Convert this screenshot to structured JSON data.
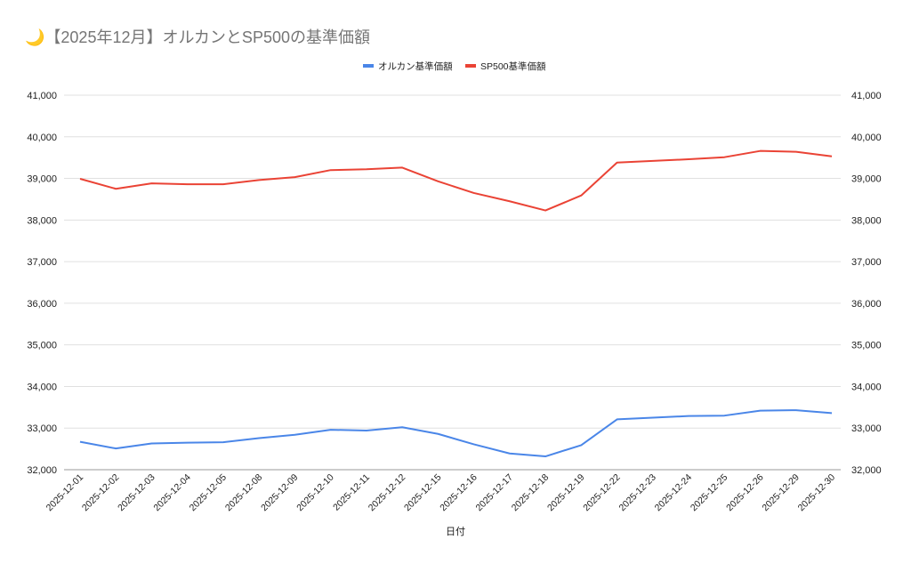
{
  "chart_data": {
    "type": "line",
    "title": "🌙【2025年12月】オルカンとSP500の基準価額",
    "xlabel": "日付",
    "ylabel": "",
    "ylim": [
      32000,
      41000
    ],
    "yticks": [
      "32,000",
      "33,000",
      "34,000",
      "35,000",
      "36,000",
      "37,000",
      "38,000",
      "39,000",
      "40,000",
      "41,000"
    ],
    "grid": true,
    "legend_position": "top",
    "categories": [
      "2025-12-01",
      "2025-12-02",
      "2025-12-03",
      "2025-12-04",
      "2025-12-05",
      "2025-12-08",
      "2025-12-09",
      "2025-12-10",
      "2025-12-11",
      "2025-12-12",
      "2025-12-15",
      "2025-12-16",
      "2025-12-17",
      "2025-12-18",
      "2025-12-19",
      "2025-12-22",
      "2025-12-23",
      "2025-12-24",
      "2025-12-25",
      "2025-12-26",
      "2025-12-29",
      "2025-12-30"
    ],
    "series": [
      {
        "name": "オルカン基準価額",
        "color": "#4a86e8",
        "values": [
          32670,
          32510,
          32630,
          32650,
          32660,
          32760,
          32840,
          32960,
          32940,
          33020,
          32860,
          32610,
          32390,
          32320,
          32590,
          33210,
          33250,
          33290,
          33300,
          33420,
          33430,
          33360
        ]
      },
      {
        "name": "SP500基準価額",
        "color": "#ea4335",
        "values": [
          38990,
          38750,
          38880,
          38860,
          38860,
          38960,
          39030,
          39200,
          39220,
          39260,
          38930,
          38650,
          38450,
          38230,
          38590,
          39380,
          39420,
          39460,
          39510,
          39660,
          39640,
          39530
        ]
      }
    ]
  }
}
